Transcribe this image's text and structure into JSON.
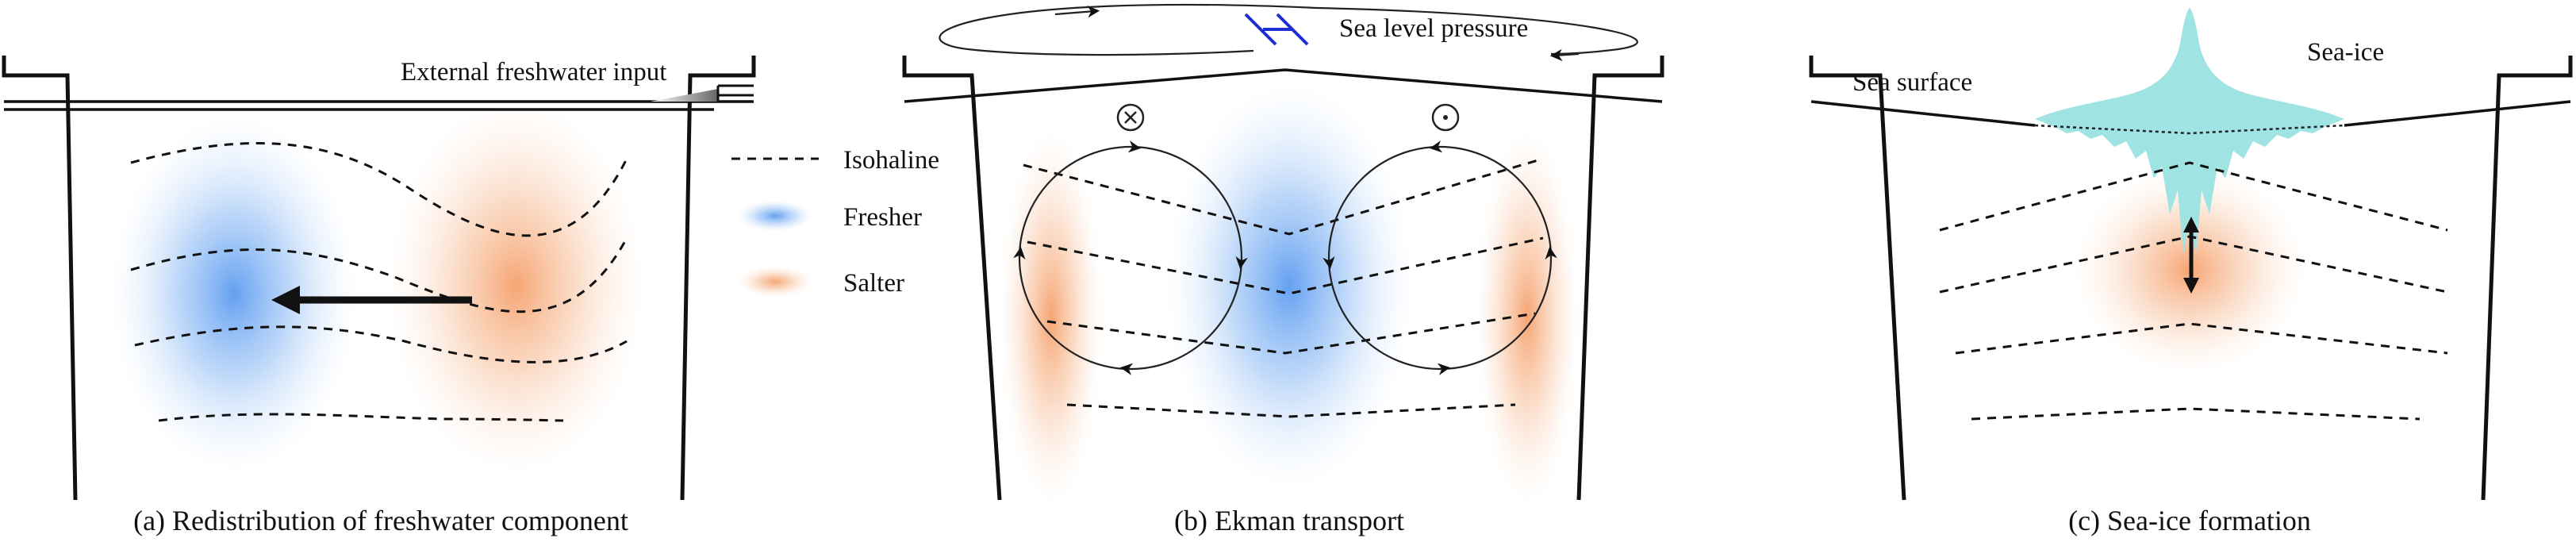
{
  "panel_a": {
    "label_freshwater_input": "External freshwater input",
    "caption": "(a) Redistribution of freshwater component"
  },
  "legend": {
    "isohaline": "Isohaline",
    "fresher": "Fresher",
    "salter": "Salter"
  },
  "panel_b": {
    "label_pressure": "Sea level pressure",
    "caption": "(b) Ekman transport"
  },
  "panel_c": {
    "label_sea_surface": "Sea surface",
    "label_sea_ice": "Sea-ice",
    "caption": "(c) Sea-ice formation"
  },
  "colors": {
    "fresher": "#5b9bf0",
    "salter": "#f5a06b",
    "sea_ice": "#9fe3e3",
    "pressure_symbol": "#1f2fd6",
    "ink": "#111111"
  }
}
